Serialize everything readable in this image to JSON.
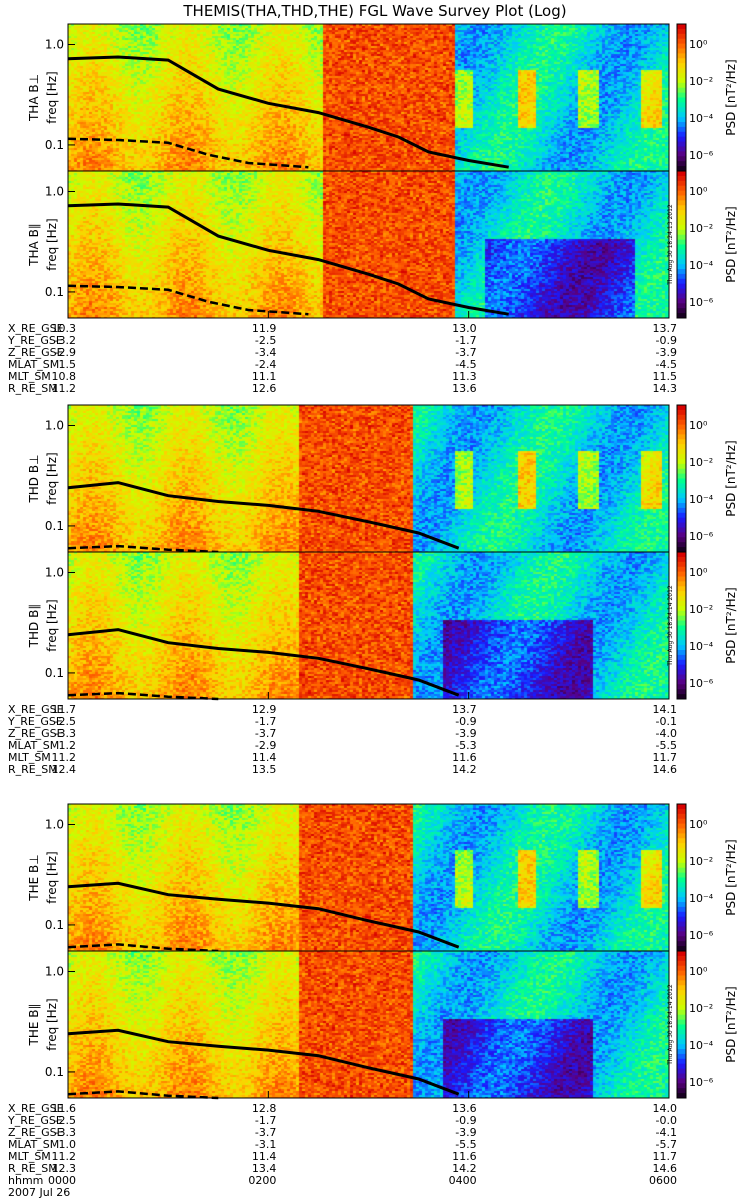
{
  "title": "THEMIS(THA,THD,THE) FGL Wave Survey Plot (Log)",
  "chart_data": {
    "type": "heatmap",
    "title": "THEMIS(THA,THD,THE) FGL Wave Survey Plot (Log)",
    "date": "2007 Jul 26",
    "ylabel": "freq [Hz]",
    "yscale": "log",
    "yticks": [
      "0.1",
      "1.0"
    ],
    "colorbar": {
      "label": "PSD [nT²/Hz]",
      "ticks": [
        "10⁰",
        "10⁻²",
        "10⁻⁴",
        "10⁻⁶"
      ],
      "colormap": [
        "#000000",
        "#5a0080",
        "#1a1aff",
        "#00c8ff",
        "#00ff90",
        "#c8ff00",
        "#ffd000",
        "#ff6000",
        "#d80000"
      ]
    },
    "time_axis": {
      "label": "hhmm",
      "ticks": [
        "0000",
        "0200",
        "0400",
        "0600"
      ],
      "hours": [
        0,
        2,
        4,
        6
      ]
    },
    "probes": [
      {
        "id": "THA",
        "panels": [
          {
            "label": "THA B⊥",
            "stamp": ""
          },
          {
            "label": "THA B∥",
            "stamp": "Thu Aug 30 18:24:13 2012"
          }
        ],
        "lines": [
          {
            "name": "line-1",
            "style": "solid",
            "points": [
              [
                0,
                0.72
              ],
              [
                0.5,
                0.75
              ],
              [
                1.0,
                0.7
              ],
              [
                1.5,
                0.36
              ],
              [
                2.0,
                0.26
              ],
              [
                2.5,
                0.21
              ],
              [
                3.0,
                0.15
              ],
              [
                3.3,
                0.12
              ],
              [
                3.6,
                0.085
              ],
              [
                4.0,
                0.07
              ],
              [
                4.4,
                0.06
              ]
            ]
          },
          {
            "name": "line-2",
            "style": "dashed",
            "points": [
              [
                0,
                0.115
              ],
              [
                0.5,
                0.112
              ],
              [
                1.0,
                0.105
              ],
              [
                1.4,
                0.08
              ],
              [
                1.8,
                0.066
              ],
              [
                2.4,
                0.06
              ]
            ]
          }
        ],
        "positions": [
          {
            "label": "X_RE_GSE",
            "values": [
              "10.3",
              "11.9",
              "13.0",
              "13.7"
            ]
          },
          {
            "label": "Y_RE_GSE",
            "values": [
              "-3.2",
              "-2.5",
              "-1.7",
              "-0.9"
            ]
          },
          {
            "label": "Z_RE_GSE",
            "values": [
              "-2.9",
              "-3.4",
              "-3.7",
              "-3.9"
            ]
          },
          {
            "label": "MLAT_SM",
            "values": [
              "1.5",
              "-2.4",
              "-4.5",
              "-4.5"
            ]
          },
          {
            "label": "MLT_SM",
            "values": [
              "10.8",
              "11.1",
              "11.3",
              "11.5"
            ]
          },
          {
            "label": "R_RE_SM",
            "values": [
              "11.2",
              "12.6",
              "13.6",
              "14.3"
            ]
          }
        ]
      },
      {
        "id": "THD",
        "panels": [
          {
            "label": "THD B⊥",
            "stamp": ""
          },
          {
            "label": "THD B∥",
            "stamp": "Thu Aug 30 18:24:14 2012"
          }
        ],
        "lines": [
          {
            "name": "line-1",
            "style": "solid",
            "points": [
              [
                0,
                0.24
              ],
              [
                0.5,
                0.27
              ],
              [
                1.0,
                0.2
              ],
              [
                1.5,
                0.175
              ],
              [
                2.0,
                0.16
              ],
              [
                2.5,
                0.14
              ],
              [
                3.0,
                0.11
              ],
              [
                3.5,
                0.085
              ],
              [
                3.9,
                0.06
              ]
            ]
          },
          {
            "name": "line-2",
            "style": "dashed",
            "points": [
              [
                0,
                0.06
              ],
              [
                0.5,
                0.063
              ],
              [
                1.0,
                0.058
              ],
              [
                1.5,
                0.055
              ]
            ]
          }
        ],
        "positions": [
          {
            "label": "X_RE_GSE",
            "values": [
              "11.7",
              "12.9",
              "13.7",
              "14.1"
            ]
          },
          {
            "label": "Y_RE_GSE",
            "values": [
              "-2.5",
              "-1.7",
              "-0.9",
              "-0.1"
            ]
          },
          {
            "label": "Z_RE_GSE",
            "values": [
              "-3.3",
              "-3.7",
              "-3.9",
              "-4.0"
            ]
          },
          {
            "label": "MLAT_SM",
            "values": [
              "1.2",
              "-2.9",
              "-5.3",
              "-5.5"
            ]
          },
          {
            "label": "MLT_SM",
            "values": [
              "11.2",
              "11.4",
              "11.6",
              "11.7"
            ]
          },
          {
            "label": "R_RE_SM",
            "values": [
              "12.4",
              "13.5",
              "14.2",
              "14.6"
            ]
          }
        ]
      },
      {
        "id": "THE",
        "panels": [
          {
            "label": "THE B⊥",
            "stamp": ""
          },
          {
            "label": "THE B∥",
            "stamp": "Thu Aug 30 18:24:14 2012"
          }
        ],
        "lines": [
          {
            "name": "line-1",
            "style": "solid",
            "points": [
              [
                0,
                0.24
              ],
              [
                0.5,
                0.26
              ],
              [
                1.0,
                0.2
              ],
              [
                1.5,
                0.18
              ],
              [
                2.0,
                0.165
              ],
              [
                2.5,
                0.145
              ],
              [
                3.0,
                0.11
              ],
              [
                3.5,
                0.085
              ],
              [
                3.9,
                0.06
              ]
            ]
          },
          {
            "name": "line-2",
            "style": "dashed",
            "points": [
              [
                0,
                0.06
              ],
              [
                0.5,
                0.064
              ],
              [
                1.0,
                0.058
              ],
              [
                1.5,
                0.055
              ]
            ]
          }
        ],
        "positions": [
          {
            "label": "X_RE_GSE",
            "values": [
              "11.6",
              "12.8",
              "13.6",
              "14.0"
            ]
          },
          {
            "label": "Y_RE_GSE",
            "values": [
              "-2.5",
              "-1.7",
              "-0.9",
              "-0.0"
            ]
          },
          {
            "label": "Z_RE_GSE",
            "values": [
              "-3.3",
              "-3.7",
              "-3.9",
              "-4.1"
            ]
          },
          {
            "label": "MLAT_SM",
            "values": [
              "1.0",
              "-3.1",
              "-5.5",
              "-5.7"
            ]
          },
          {
            "label": "MLT_SM",
            "values": [
              "11.2",
              "11.4",
              "11.6",
              "11.7"
            ]
          },
          {
            "label": "R_RE_SM",
            "values": [
              "12.3",
              "13.4",
              "14.2",
              "14.6"
            ]
          }
        ]
      }
    ]
  }
}
